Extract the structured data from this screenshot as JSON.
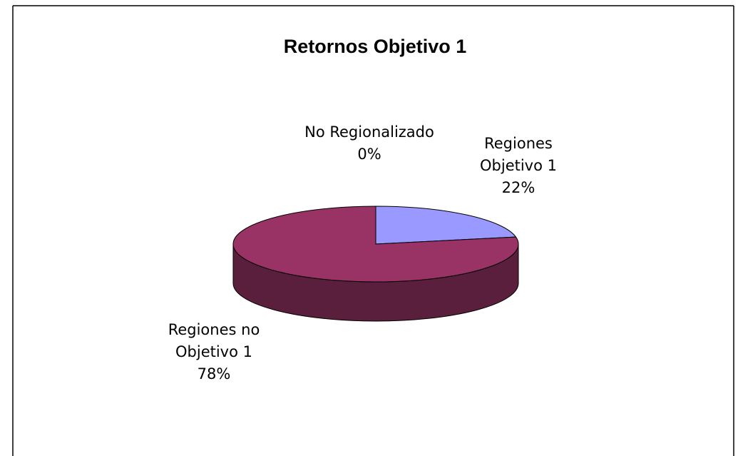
{
  "chart_data": {
    "type": "pie3d",
    "title": "Retornos Objetivo 1",
    "categories": [
      "Regiones Objetivo 1",
      "Regiones no Objetivo 1",
      "No Regionalizado"
    ],
    "values": [
      22,
      78,
      0
    ],
    "value_labels": [
      "22%",
      "78%",
      "0%"
    ],
    "colors": [
      "#9999ff",
      "#993366",
      "#ffffcc"
    ],
    "side_colors": [
      "#5c5c99",
      "#5a1f3c",
      "#99997a"
    ]
  }
}
